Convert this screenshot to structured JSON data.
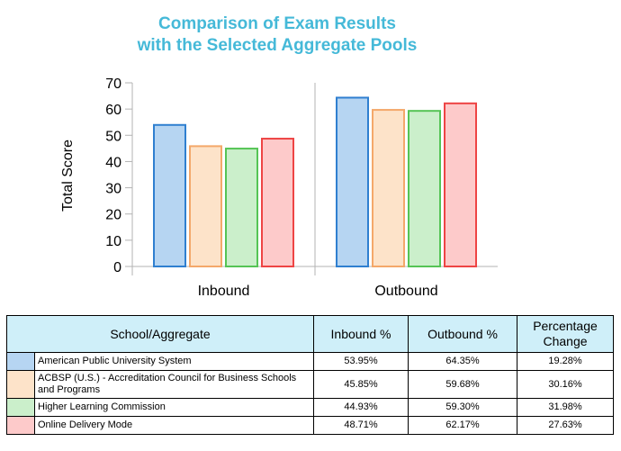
{
  "chart_data": {
    "type": "bar",
    "title": [
      "Comparison of Exam Results",
      "with the Selected Aggregate Pools"
    ],
    "title_color": "#45b9d8",
    "ylabel": "Total Score",
    "xlabel": "",
    "ylim": [
      0,
      70
    ],
    "yticks": [
      "0",
      "10",
      "20",
      "30",
      "40",
      "50",
      "60",
      "70"
    ],
    "categories": [
      "Inbound",
      "Outbound"
    ],
    "grid": false,
    "legend": "none",
    "series": [
      {
        "name": "American Public University System",
        "values": [
          53.95,
          64.35
        ],
        "fill": "#b6d5f2",
        "stroke": "#2f7fd0"
      },
      {
        "name": "ACBSP (U.S.) - Accreditation Council for Business Schools and Programs",
        "values": [
          45.85,
          59.68
        ],
        "fill": "#fde3c9",
        "stroke": "#f4a86a"
      },
      {
        "name": "Higher Learning Commission",
        "values": [
          44.93,
          59.3
        ],
        "fill": "#cbefcb",
        "stroke": "#55c455"
      },
      {
        "name": "Online Delivery Mode",
        "values": [
          48.71,
          62.17
        ],
        "fill": "#fdcaca",
        "stroke": "#ee4444"
      }
    ]
  },
  "table": {
    "headers": {
      "school": "School/Aggregate",
      "inbound": "Inbound %",
      "outbound": "Outbound %",
      "change": "Percentage Change"
    },
    "rows": [
      {
        "name": "American Public University System",
        "inbound": "53.95%",
        "outbound": "64.35%",
        "change": "19.28%",
        "color": "#b6d5f2"
      },
      {
        "name": "ACBSP (U.S.) - Accreditation Council for Business Schools and Programs",
        "inbound": "45.85%",
        "outbound": "59.68%",
        "change": "30.16%",
        "color": "#fde3c9"
      },
      {
        "name": "Higher Learning Commission",
        "inbound": "44.93%",
        "outbound": "59.30%",
        "change": "31.98%",
        "color": "#cbefcb"
      },
      {
        "name": "Online Delivery Mode",
        "inbound": "48.71%",
        "outbound": "62.17%",
        "change": "27.63%",
        "color": "#fdcaca"
      }
    ]
  }
}
